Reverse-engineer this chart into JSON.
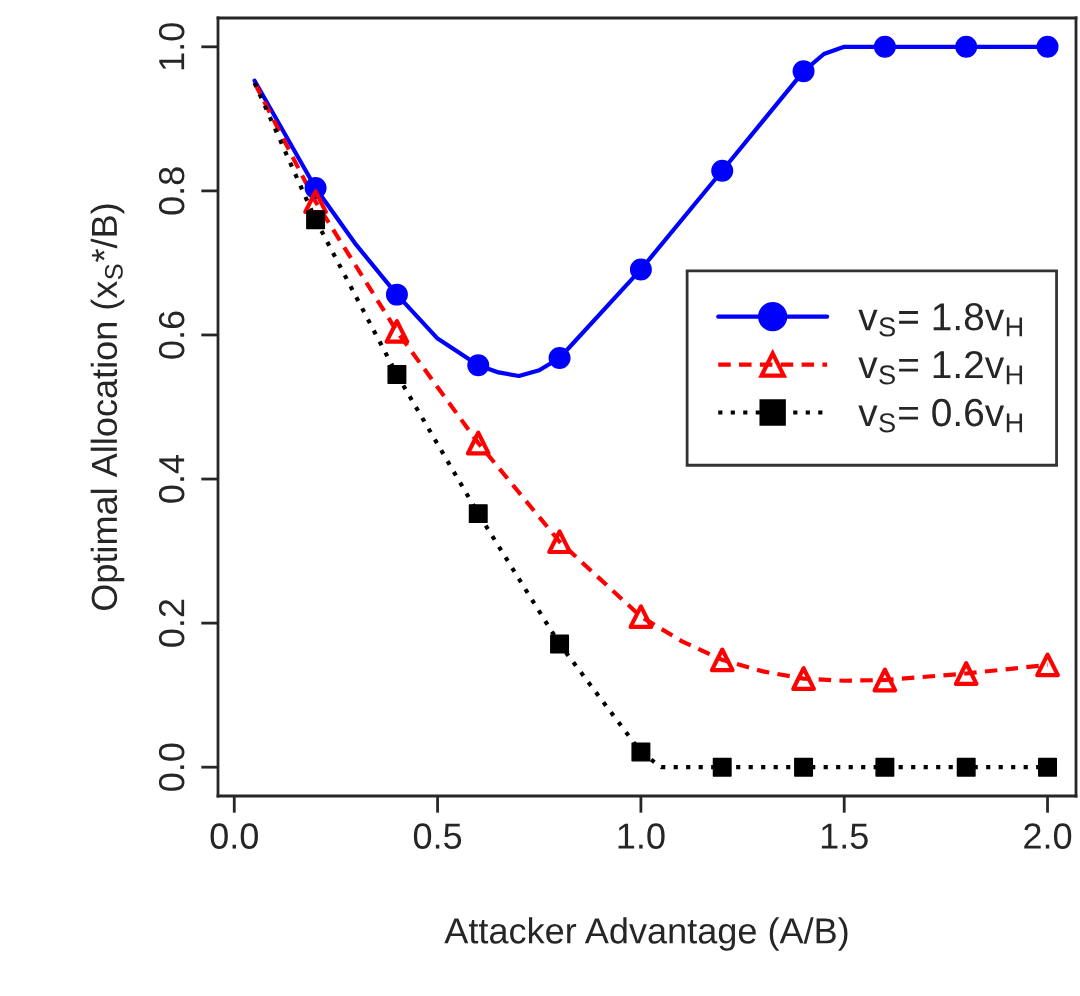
{
  "chart_data": {
    "type": "line",
    "xlabel": "Attacker Advantage (A/B)",
    "ylabel": "Optimal Allocation (x$_{S}$*/B)",
    "xlim": [
      -0.04,
      2.07
    ],
    "ylim": [
      -0.04,
      1.04
    ],
    "xticks": [
      {
        "value": 0,
        "label": "0.0"
      },
      0.5,
      {
        "value": 1,
        "label": "1.0"
      },
      1.5,
      {
        "value": 2,
        "label": "2.0"
      }
    ],
    "yticks": [
      {
        "value": 0,
        "label": "0.0"
      },
      0.2,
      0.4,
      0.6,
      0.8,
      {
        "value": 1,
        "label": "1.0"
      }
    ],
    "grid": false,
    "legend": "right",
    "series": [
      {
        "color": "#0000ff",
        "line_style": "solid",
        "marker": "none",
        "x": [
          0.05,
          0.2,
          0.3,
          0.4,
          0.5,
          0.6,
          0.65,
          0.7,
          0.75,
          0.8,
          1.0,
          1.2,
          1.4,
          1.45,
          1.5,
          1.6,
          1.8,
          2.0
        ],
        "values": [
          0.953,
          0.804,
          0.725,
          0.656,
          0.595,
          0.558,
          0.548,
          0.543,
          0.551,
          0.568,
          0.691,
          0.828,
          0.966,
          0.99,
          1.0,
          1.0,
          1.0,
          1.0
        ]
      },
      {
        "color": "#ff0000",
        "line_style": "dashed",
        "marker": "none",
        "x": [
          0.05,
          0.2,
          0.4,
          0.6,
          0.8,
          1.0,
          1.1,
          1.2,
          1.3,
          1.4,
          1.5,
          1.6,
          1.8,
          2.0
        ],
        "values": [
          0.95,
          0.785,
          0.605,
          0.45,
          0.313,
          0.209,
          0.175,
          0.149,
          0.133,
          0.123,
          0.12,
          0.121,
          0.13,
          0.142
        ]
      },
      {
        "color": "#000000",
        "line_style": "dotted",
        "marker": "none",
        "x": [
          0.05,
          0.2,
          0.4,
          0.6,
          0.8,
          1.0,
          1.05,
          1.2,
          1.4,
          1.6,
          1.8,
          2.0
        ],
        "values": [
          0.95,
          0.76,
          0.545,
          0.352,
          0.171,
          0.021,
          0.0,
          0.0,
          0.0,
          0.0,
          0.0,
          0.0
        ]
      },
      {
        "type": "scatter",
        "name": "v$_{S}$= 1.8v$_{H}$",
        "color": "#0000ff",
        "marker": "circle",
        "x": [
          0.2,
          0.4,
          0.6,
          0.8,
          1.0,
          1.2,
          1.4,
          1.6,
          1.8,
          2.0
        ],
        "values": [
          0.804,
          0.656,
          0.558,
          0.568,
          0.691,
          0.828,
          0.966,
          1.0,
          1.0,
          1.0
        ]
      },
      {
        "type": "scatter",
        "name": "v$_{S}$= 1.2v$_{H}$",
        "color": "#ff0000",
        "marker": "triangle",
        "x": [
          0.2,
          0.4,
          0.6,
          0.8,
          1.0,
          1.2,
          1.4,
          1.6,
          1.8,
          2.0
        ],
        "values": [
          0.785,
          0.605,
          0.45,
          0.313,
          0.209,
          0.149,
          0.123,
          0.121,
          0.13,
          0.142
        ]
      },
      {
        "type": "scatter",
        "name": "v$_{S}$= 0.6v$_{H}$",
        "color": "#000000",
        "marker": "square",
        "x": [
          0.2,
          0.4,
          0.6,
          0.8,
          1.0,
          1.2,
          1.4,
          1.6,
          1.8,
          2.0
        ],
        "values": [
          0.76,
          0.545,
          0.352,
          0.171,
          0.021,
          0.0,
          0.0,
          0.0,
          0.0,
          0.0
        ]
      }
    ]
  }
}
